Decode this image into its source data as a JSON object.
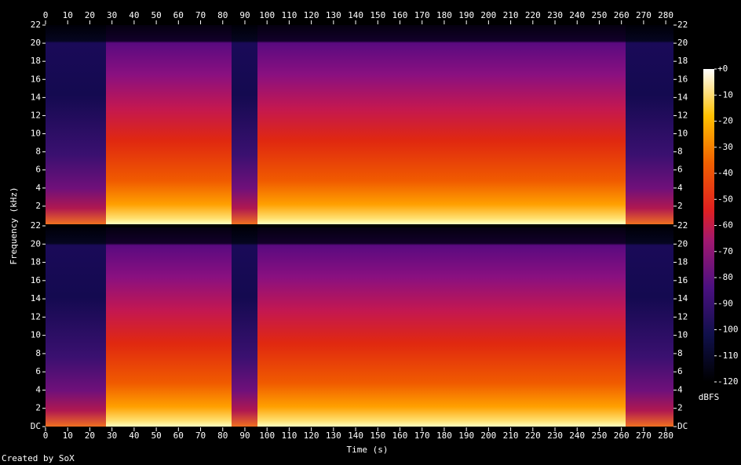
{
  "chart_data": {
    "type": "spectrogram",
    "x_label": "Time (s)",
    "y_label": "Frequency (kHz)",
    "xlim": [
      0,
      283.5
    ],
    "xticks": [
      0,
      10,
      20,
      30,
      40,
      50,
      60,
      70,
      80,
      90,
      100,
      110,
      120,
      130,
      140,
      150,
      160,
      170,
      180,
      190,
      200,
      210,
      220,
      230,
      240,
      250,
      260,
      270,
      280
    ],
    "panels": [
      {
        "ylim": [
          0,
          22
        ],
        "yticks": [
          2,
          4,
          6,
          8,
          10,
          12,
          14,
          16,
          18,
          20,
          22
        ]
      },
      {
        "ylim": [
          0,
          22
        ],
        "yticks": [
          {
            "value": 0,
            "label": "DC"
          },
          2,
          4,
          6,
          8,
          10,
          12,
          14,
          16,
          18,
          20,
          22
        ]
      }
    ],
    "colorbar": {
      "label": "dBFS",
      "lim": [
        -120,
        0
      ],
      "ticks": [
        {
          "value": 0,
          "label": "+0"
        },
        -10,
        -20,
        -30,
        -40,
        -50,
        -60,
        -70,
        -80,
        -90,
        -100,
        -110,
        -120
      ]
    }
  },
  "footer": "Created by SoX"
}
